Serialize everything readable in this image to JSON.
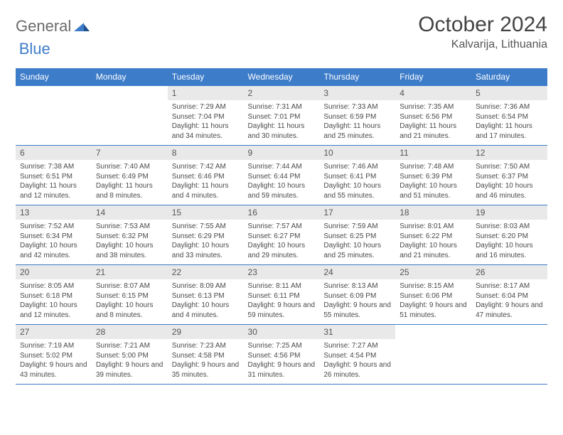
{
  "brand": {
    "word1": "General",
    "word2": "Blue"
  },
  "title": "October 2024",
  "location": "Kalvarija, Lithuania",
  "colors": {
    "header_bg": "#3d7cc9",
    "header_text": "#ffffff",
    "daynum_bg": "#e9e9e9",
    "body_text": "#4a4a4a",
    "row_border": "#3d7cc9",
    "page_bg": "#ffffff",
    "brand_gray": "#6b6b6b",
    "brand_blue": "#3d7cc9"
  },
  "typography": {
    "title_fontsize": 30,
    "location_fontsize": 16,
    "dayheader_fontsize": 12,
    "daynum_fontsize": 12,
    "cell_fontsize": 10
  },
  "calendar": {
    "type": "table",
    "columns": [
      "Sunday",
      "Monday",
      "Tuesday",
      "Wednesday",
      "Thursday",
      "Friday",
      "Saturday"
    ],
    "weeks": [
      [
        null,
        null,
        {
          "n": "1",
          "sunrise": "7:29 AM",
          "sunset": "7:04 PM",
          "daylight": "11 hours and 34 minutes."
        },
        {
          "n": "2",
          "sunrise": "7:31 AM",
          "sunset": "7:01 PM",
          "daylight": "11 hours and 30 minutes."
        },
        {
          "n": "3",
          "sunrise": "7:33 AM",
          "sunset": "6:59 PM",
          "daylight": "11 hours and 25 minutes."
        },
        {
          "n": "4",
          "sunrise": "7:35 AM",
          "sunset": "6:56 PM",
          "daylight": "11 hours and 21 minutes."
        },
        {
          "n": "5",
          "sunrise": "7:36 AM",
          "sunset": "6:54 PM",
          "daylight": "11 hours and 17 minutes."
        }
      ],
      [
        {
          "n": "6",
          "sunrise": "7:38 AM",
          "sunset": "6:51 PM",
          "daylight": "11 hours and 12 minutes."
        },
        {
          "n": "7",
          "sunrise": "7:40 AM",
          "sunset": "6:49 PM",
          "daylight": "11 hours and 8 minutes."
        },
        {
          "n": "8",
          "sunrise": "7:42 AM",
          "sunset": "6:46 PM",
          "daylight": "11 hours and 4 minutes."
        },
        {
          "n": "9",
          "sunrise": "7:44 AM",
          "sunset": "6:44 PM",
          "daylight": "10 hours and 59 minutes."
        },
        {
          "n": "10",
          "sunrise": "7:46 AM",
          "sunset": "6:41 PM",
          "daylight": "10 hours and 55 minutes."
        },
        {
          "n": "11",
          "sunrise": "7:48 AM",
          "sunset": "6:39 PM",
          "daylight": "10 hours and 51 minutes."
        },
        {
          "n": "12",
          "sunrise": "7:50 AM",
          "sunset": "6:37 PM",
          "daylight": "10 hours and 46 minutes."
        }
      ],
      [
        {
          "n": "13",
          "sunrise": "7:52 AM",
          "sunset": "6:34 PM",
          "daylight": "10 hours and 42 minutes."
        },
        {
          "n": "14",
          "sunrise": "7:53 AM",
          "sunset": "6:32 PM",
          "daylight": "10 hours and 38 minutes."
        },
        {
          "n": "15",
          "sunrise": "7:55 AM",
          "sunset": "6:29 PM",
          "daylight": "10 hours and 33 minutes."
        },
        {
          "n": "16",
          "sunrise": "7:57 AM",
          "sunset": "6:27 PM",
          "daylight": "10 hours and 29 minutes."
        },
        {
          "n": "17",
          "sunrise": "7:59 AM",
          "sunset": "6:25 PM",
          "daylight": "10 hours and 25 minutes."
        },
        {
          "n": "18",
          "sunrise": "8:01 AM",
          "sunset": "6:22 PM",
          "daylight": "10 hours and 21 minutes."
        },
        {
          "n": "19",
          "sunrise": "8:03 AM",
          "sunset": "6:20 PM",
          "daylight": "10 hours and 16 minutes."
        }
      ],
      [
        {
          "n": "20",
          "sunrise": "8:05 AM",
          "sunset": "6:18 PM",
          "daylight": "10 hours and 12 minutes."
        },
        {
          "n": "21",
          "sunrise": "8:07 AM",
          "sunset": "6:15 PM",
          "daylight": "10 hours and 8 minutes."
        },
        {
          "n": "22",
          "sunrise": "8:09 AM",
          "sunset": "6:13 PM",
          "daylight": "10 hours and 4 minutes."
        },
        {
          "n": "23",
          "sunrise": "8:11 AM",
          "sunset": "6:11 PM",
          "daylight": "9 hours and 59 minutes."
        },
        {
          "n": "24",
          "sunrise": "8:13 AM",
          "sunset": "6:09 PM",
          "daylight": "9 hours and 55 minutes."
        },
        {
          "n": "25",
          "sunrise": "8:15 AM",
          "sunset": "6:06 PM",
          "daylight": "9 hours and 51 minutes."
        },
        {
          "n": "26",
          "sunrise": "8:17 AM",
          "sunset": "6:04 PM",
          "daylight": "9 hours and 47 minutes."
        }
      ],
      [
        {
          "n": "27",
          "sunrise": "7:19 AM",
          "sunset": "5:02 PM",
          "daylight": "9 hours and 43 minutes."
        },
        {
          "n": "28",
          "sunrise": "7:21 AM",
          "sunset": "5:00 PM",
          "daylight": "9 hours and 39 minutes."
        },
        {
          "n": "29",
          "sunrise": "7:23 AM",
          "sunset": "4:58 PM",
          "daylight": "9 hours and 35 minutes."
        },
        {
          "n": "30",
          "sunrise": "7:25 AM",
          "sunset": "4:56 PM",
          "daylight": "9 hours and 31 minutes."
        },
        {
          "n": "31",
          "sunrise": "7:27 AM",
          "sunset": "4:54 PM",
          "daylight": "9 hours and 26 minutes."
        },
        null,
        null
      ]
    ],
    "labels": {
      "sunrise": "Sunrise:",
      "sunset": "Sunset:",
      "daylight": "Daylight:"
    }
  }
}
